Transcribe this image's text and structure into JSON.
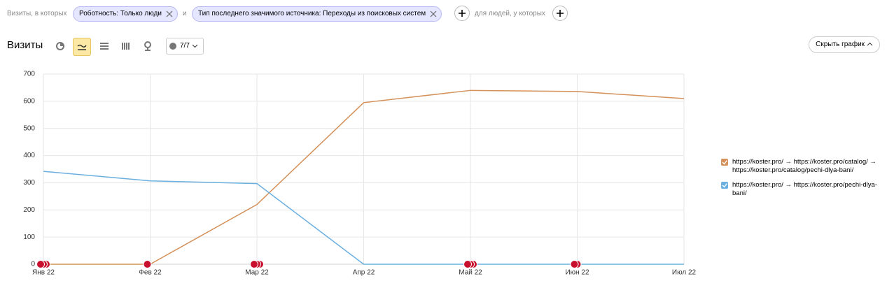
{
  "filters": {
    "prefix": "Визиты, в которых",
    "chip1": "Роботность: Только люди",
    "joiner": "и",
    "chip2": "Тип последнего значимого источника: Переходы из поисковых систем",
    "people": "для людей, у которых"
  },
  "toolbar": {
    "title": "Визиты",
    "annotations": "7/7",
    "hide_chart": "Скрыть график"
  },
  "chart_data": {
    "type": "line",
    "categories": [
      "Янв 22",
      "Фев 22",
      "Мар 22",
      "Апр 22",
      "Май 22",
      "Июн 22",
      "Июл 22"
    ],
    "series": [
      {
        "name": "https://koster.pro/ → https://koster.pro/catalog/ → https://koster.pro/catalog/pechi-dlya-bani/",
        "color": "#d4915a",
        "values": [
          0,
          0,
          220,
          595,
          640,
          636,
          610
        ]
      },
      {
        "name": "https://koster.pro/ → https://koster.pro/pechi-dlya-bani/",
        "color": "#6aafe0",
        "values": [
          342,
          307,
          297,
          0,
          0,
          0,
          0
        ]
      }
    ],
    "ylim": [
      0,
      700
    ],
    "yticks": [
      0,
      100,
      200,
      300,
      400,
      500,
      600,
      700
    ],
    "grid": true,
    "legend": "right"
  }
}
